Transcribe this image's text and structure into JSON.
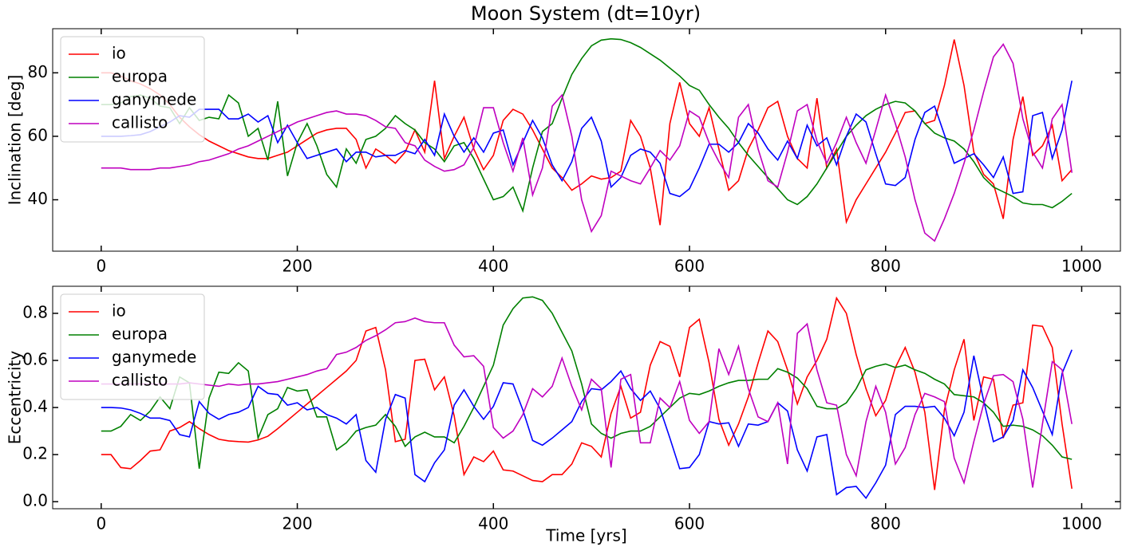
{
  "title": "Moon System (dt=10yr)",
  "chart_data": [
    {
      "type": "line",
      "ylabel": "Inclination [deg]",
      "x": [
        0,
        10,
        20,
        30,
        40,
        50,
        60,
        70,
        80,
        90,
        100,
        110,
        120,
        130,
        140,
        150,
        160,
        170,
        180,
        190,
        200,
        210,
        220,
        230,
        240,
        250,
        260,
        270,
        280,
        290,
        300,
        310,
        320,
        330,
        340,
        350,
        360,
        370,
        380,
        390,
        400,
        410,
        420,
        430,
        440,
        450,
        460,
        470,
        480,
        490,
        500,
        510,
        520,
        530,
        540,
        550,
        560,
        570,
        580,
        590,
        600,
        610,
        620,
        630,
        640,
        650,
        660,
        670,
        680,
        690,
        700,
        710,
        720,
        730,
        740,
        750,
        760,
        770,
        780,
        790,
        800,
        810,
        820,
        830,
        840,
        850,
        860,
        870,
        880,
        890,
        900,
        910,
        920,
        930,
        940,
        950,
        960,
        970,
        980,
        990
      ],
      "series": [
        {
          "name": "io",
          "color": "#ff0000",
          "values": [
            80,
            80,
            79,
            77.5,
            76.5,
            75,
            73,
            70,
            66,
            63,
            60.5,
            58.5,
            57,
            55.5,
            54.5,
            53.5,
            53,
            53,
            54,
            55,
            57,
            59,
            61,
            62,
            62.5,
            62.5,
            59,
            50,
            56,
            54,
            51.5,
            55,
            62,
            55,
            77.5,
            53,
            60,
            66,
            56,
            49.5,
            54,
            65,
            68.5,
            67,
            62,
            56,
            50,
            47,
            43,
            45,
            47.5,
            46.5,
            47,
            49,
            65,
            60,
            50,
            32,
            64,
            77,
            64,
            60,
            69,
            56,
            43,
            46,
            56,
            62,
            69,
            71,
            60,
            53,
            50,
            72,
            50,
            56,
            33,
            40,
            45,
            50,
            55,
            61,
            67.5,
            68,
            64,
            65,
            76,
            90.5,
            76,
            55,
            48,
            45,
            34,
            59,
            72.5,
            54,
            57,
            63.5,
            46,
            49.5
          ]
        },
        {
          "name": "europa",
          "color": "#008000",
          "values": [
            70,
            70,
            70.5,
            72.5,
            73,
            72,
            69.5,
            69,
            64,
            69,
            65,
            66,
            65.5,
            73,
            70.5,
            60,
            62.5,
            52.5,
            71,
            47.5,
            58,
            64,
            57,
            48,
            44,
            56,
            51.5,
            59,
            60,
            62.5,
            66.5,
            64,
            62,
            58,
            56,
            52,
            57,
            58,
            53,
            46.5,
            40,
            41,
            44,
            36.5,
            50,
            61.5,
            64,
            72,
            79.5,
            84.5,
            88.5,
            90.3,
            90.7,
            90.5,
            89.5,
            88,
            86,
            84,
            81.5,
            79,
            76,
            74.5,
            70,
            66,
            62.5,
            58,
            54,
            50.5,
            47,
            43.5,
            40,
            38.5,
            41,
            45,
            50,
            55,
            60,
            63.5,
            66.5,
            68.5,
            70,
            71,
            70.5,
            68,
            64,
            61,
            59.5,
            58.5,
            56,
            52,
            47,
            44,
            42.5,
            41,
            39,
            38.5,
            38.5,
            37.5,
            39.5,
            42
          ]
        },
        {
          "name": "ganymede",
          "color": "#0000ff",
          "values": [
            60,
            60,
            60,
            60.2,
            60.5,
            61.5,
            63,
            64.5,
            66.5,
            66,
            68.5,
            68.5,
            68.5,
            65.5,
            65.5,
            67,
            64.5,
            66.5,
            58,
            63.5,
            58,
            53,
            54,
            55,
            56,
            52,
            55,
            55,
            53.5,
            54,
            54,
            55.5,
            54.5,
            59,
            54,
            67,
            60,
            55,
            59.5,
            55,
            61,
            62,
            51,
            58,
            65,
            59.5,
            51,
            46,
            52,
            62.5,
            66,
            58.5,
            44,
            47,
            54,
            56,
            55,
            51.5,
            42,
            41,
            43.5,
            50,
            57.5,
            57.5,
            55,
            58,
            64,
            61,
            56,
            52.5,
            58.5,
            53,
            63.5,
            57,
            59.5,
            51,
            60,
            67,
            64.5,
            54.5,
            45,
            44.5,
            47,
            59,
            67.5,
            69.5,
            60.5,
            51.5,
            53,
            54.5,
            51,
            47,
            53.5,
            42,
            42.5,
            66.5,
            67.5,
            53,
            62,
            77.5
          ]
        },
        {
          "name": "callisto",
          "color": "#bf00bf",
          "values": [
            50,
            50,
            50,
            49.5,
            49.5,
            49.5,
            50,
            50,
            50.5,
            51,
            52,
            52.5,
            53.5,
            54.5,
            56,
            57,
            58.5,
            60,
            61.5,
            63,
            64.5,
            65.5,
            66.5,
            67.5,
            68,
            67,
            67,
            66.5,
            65,
            63,
            62.5,
            58,
            57,
            52.5,
            50.5,
            49,
            49.5,
            51,
            56.5,
            69,
            69,
            58,
            49,
            59.5,
            41.5,
            50,
            69.5,
            73,
            60,
            40,
            30,
            35,
            49,
            47.5,
            46,
            45,
            50,
            55.5,
            52.5,
            57,
            68,
            66,
            58,
            52,
            47,
            66,
            70,
            56,
            46,
            44,
            55,
            68,
            70,
            58.5,
            51.5,
            58,
            66,
            58,
            51.5,
            62,
            73,
            64,
            53.5,
            40,
            29.5,
            27,
            34,
            42,
            51.5,
            62,
            74,
            85,
            89,
            83,
            65.5,
            55,
            50,
            65.5,
            70,
            48.5
          ]
        }
      ],
      "xlim": [
        -49.5,
        1039.5
      ],
      "ylim": [
        23.8,
        93.9
      ],
      "xticks": [
        0,
        200,
        400,
        600,
        800,
        1000
      ],
      "yticks": [
        40,
        60,
        80
      ],
      "legend": "upper left"
    },
    {
      "type": "line",
      "xlabel": "Time [yrs]",
      "ylabel": "Eccentricity",
      "x": [
        0,
        10,
        20,
        30,
        40,
        50,
        60,
        70,
        80,
        90,
        100,
        110,
        120,
        130,
        140,
        150,
        160,
        170,
        180,
        190,
        200,
        210,
        220,
        230,
        240,
        250,
        260,
        270,
        280,
        290,
        300,
        310,
        320,
        330,
        340,
        350,
        360,
        370,
        380,
        390,
        400,
        410,
        420,
        430,
        440,
        450,
        460,
        470,
        480,
        490,
        500,
        510,
        520,
        530,
        540,
        550,
        560,
        570,
        580,
        590,
        600,
        610,
        620,
        630,
        640,
        650,
        660,
        670,
        680,
        690,
        700,
        710,
        720,
        730,
        740,
        750,
        760,
        770,
        780,
        790,
        800,
        810,
        820,
        830,
        840,
        850,
        860,
        870,
        880,
        890,
        900,
        910,
        920,
        930,
        940,
        950,
        960,
        970,
        980,
        990
      ],
      "series": [
        {
          "name": "io",
          "color": "#ff0000",
          "values": [
            0.2,
            0.2,
            0.145,
            0.14,
            0.175,
            0.215,
            0.22,
            0.3,
            0.315,
            0.34,
            0.31,
            0.285,
            0.265,
            0.258,
            0.255,
            0.253,
            0.262,
            0.278,
            0.31,
            0.345,
            0.38,
            0.415,
            0.45,
            0.485,
            0.52,
            0.555,
            0.6,
            0.725,
            0.74,
            0.56,
            0.255,
            0.265,
            0.6,
            0.605,
            0.475,
            0.53,
            0.365,
            0.115,
            0.19,
            0.17,
            0.215,
            0.135,
            0.13,
            0.11,
            0.09,
            0.085,
            0.115,
            0.115,
            0.16,
            0.25,
            0.235,
            0.19,
            0.375,
            0.49,
            0.355,
            0.38,
            0.58,
            0.68,
            0.66,
            0.53,
            0.74,
            0.775,
            0.59,
            0.35,
            0.24,
            0.33,
            0.445,
            0.59,
            0.725,
            0.68,
            0.56,
            0.415,
            0.53,
            0.6,
            0.69,
            0.865,
            0.8,
            0.625,
            0.48,
            0.365,
            0.43,
            0.57,
            0.655,
            0.55,
            0.38,
            0.05,
            0.39,
            0.56,
            0.69,
            0.345,
            0.53,
            0.52,
            0.27,
            0.41,
            0.42,
            0.75,
            0.745,
            0.655,
            0.33,
            0.055
          ]
        },
        {
          "name": "europa",
          "color": "#008000",
          "values": [
            0.3,
            0.3,
            0.32,
            0.37,
            0.345,
            0.385,
            0.445,
            0.395,
            0.53,
            0.505,
            0.14,
            0.44,
            0.55,
            0.545,
            0.59,
            0.555,
            0.27,
            0.37,
            0.395,
            0.485,
            0.47,
            0.475,
            0.36,
            0.36,
            0.22,
            0.25,
            0.3,
            0.315,
            0.325,
            0.37,
            0.32,
            0.235,
            0.275,
            0.295,
            0.275,
            0.275,
            0.25,
            0.32,
            0.4,
            0.49,
            0.58,
            0.75,
            0.82,
            0.865,
            0.87,
            0.855,
            0.8,
            0.72,
            0.64,
            0.5,
            0.33,
            0.29,
            0.27,
            0.29,
            0.3,
            0.3,
            0.32,
            0.36,
            0.4,
            0.44,
            0.46,
            0.455,
            0.47,
            0.49,
            0.505,
            0.515,
            0.515,
            0.52,
            0.52,
            0.565,
            0.55,
            0.525,
            0.48,
            0.405,
            0.395,
            0.395,
            0.42,
            0.48,
            0.56,
            0.575,
            0.585,
            0.57,
            0.58,
            0.56,
            0.545,
            0.52,
            0.5,
            0.455,
            0.45,
            0.445,
            0.42,
            0.38,
            0.32,
            0.325,
            0.32,
            0.305,
            0.28,
            0.24,
            0.19,
            0.18
          ]
        },
        {
          "name": "ganymede",
          "color": "#0000ff",
          "values": [
            0.4,
            0.4,
            0.398,
            0.39,
            0.375,
            0.355,
            0.355,
            0.345,
            0.285,
            0.275,
            0.425,
            0.375,
            0.35,
            0.37,
            0.38,
            0.4,
            0.49,
            0.46,
            0.455,
            0.41,
            0.42,
            0.39,
            0.4,
            0.37,
            0.355,
            0.33,
            0.37,
            0.175,
            0.125,
            0.35,
            0.455,
            0.44,
            0.115,
            0.085,
            0.165,
            0.22,
            0.41,
            0.475,
            0.405,
            0.35,
            0.405,
            0.505,
            0.5,
            0.39,
            0.26,
            0.24,
            0.27,
            0.305,
            0.34,
            0.425,
            0.48,
            0.475,
            0.51,
            0.555,
            0.48,
            0.43,
            0.47,
            0.395,
            0.27,
            0.14,
            0.145,
            0.2,
            0.34,
            0.33,
            0.335,
            0.235,
            0.33,
            0.325,
            0.34,
            0.42,
            0.385,
            0.22,
            0.13,
            0.275,
            0.285,
            0.03,
            0.06,
            0.065,
            0.015,
            0.08,
            0.155,
            0.37,
            0.405,
            0.405,
            0.4,
            0.405,
            0.355,
            0.28,
            0.38,
            0.62,
            0.43,
            0.255,
            0.275,
            0.345,
            0.56,
            0.485,
            0.385,
            0.285,
            0.545,
            0.645
          ]
        },
        {
          "name": "callisto",
          "color": "#bf00bf",
          "values": [
            0.5,
            0.5,
            0.5,
            0.5,
            0.5,
            0.5,
            0.5,
            0.5,
            0.5,
            0.505,
            0.5,
            0.495,
            0.49,
            0.5,
            0.495,
            0.5,
            0.5,
            0.505,
            0.51,
            0.52,
            0.53,
            0.54,
            0.555,
            0.565,
            0.625,
            0.635,
            0.655,
            0.685,
            0.705,
            0.73,
            0.76,
            0.765,
            0.78,
            0.765,
            0.76,
            0.76,
            0.665,
            0.615,
            0.62,
            0.575,
            0.315,
            0.27,
            0.3,
            0.37,
            0.48,
            0.445,
            0.49,
            0.61,
            0.49,
            0.39,
            0.52,
            0.48,
            0.145,
            0.52,
            0.54,
            0.25,
            0.25,
            0.44,
            0.4,
            0.51,
            0.345,
            0.29,
            0.34,
            0.65,
            0.54,
            0.66,
            0.48,
            0.36,
            0.34,
            0.42,
            0.16,
            0.715,
            0.755,
            0.56,
            0.42,
            0.41,
            0.2,
            0.11,
            0.34,
            0.49,
            0.38,
            0.16,
            0.23,
            0.37,
            0.46,
            0.445,
            0.425,
            0.185,
            0.08,
            0.255,
            0.415,
            0.535,
            0.54,
            0.51,
            0.35,
            0.06,
            0.33,
            0.595,
            0.56,
            0.33
          ]
        }
      ],
      "xlim": [
        -49.5,
        1039.5
      ],
      "ylim": [
        -0.03,
        0.915
      ],
      "xticks": [
        0,
        200,
        400,
        600,
        800,
        1000
      ],
      "yticks": [
        {
          "value": 0,
          "label": "0.0"
        },
        0.2,
        0.4,
        0.6,
        0.8
      ],
      "legend": "upper left"
    }
  ]
}
